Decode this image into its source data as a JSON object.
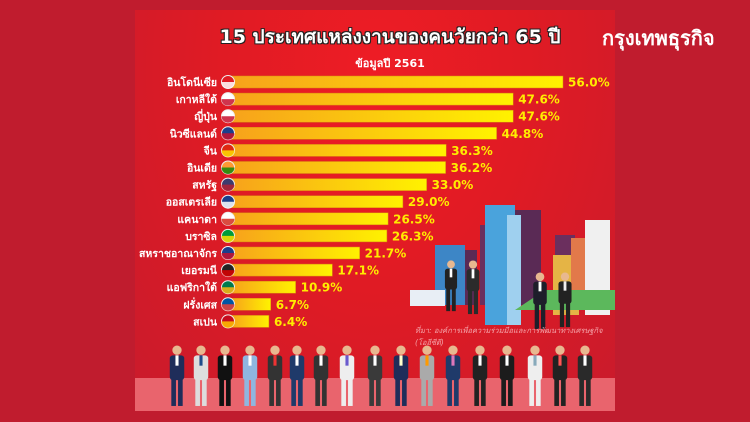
{
  "title": "15 ประเทศแหล่งงานของคนวัยกว่า 65 ปี",
  "subtitle": "ข้อมูลปี 2561",
  "logo": "กรุงเทพธุรกิจ",
  "source": "ที่มา: องค์การเพื่อความร่วมมือและการพัฒนาทางเศรษฐกิจ (โออีซีดี)",
  "colors": {
    "background": "#c01c2e",
    "poster": "#e31e24",
    "bar_start": "#f7a21b",
    "bar_end": "#fff200",
    "value_text": "#ffec00"
  },
  "chart_data": {
    "type": "bar",
    "orientation": "horizontal",
    "title": "15 ประเทศแหล่งงานของคนวัยกว่า 65 ปี",
    "subtitle": "ข้อมูลปี 2561",
    "categories": [
      "อินโดนีเซีย",
      "เกาหลีใต้",
      "ญี่ปุ่น",
      "นิวซีแลนด์",
      "จีน",
      "อินเดีย",
      "สหรัฐ",
      "ออสเตรเลีย",
      "แคนาดา",
      "บราซิล",
      "สหราชอาณาจักร",
      "เยอรมนี",
      "แอฟริกาใต้",
      "ฝรั่งเศส",
      "สเปน"
    ],
    "flags": [
      "indonesia-flag",
      "south-korea-flag",
      "japan-flag",
      "new-zealand-flag",
      "china-flag",
      "india-flag",
      "usa-flag",
      "australia-flag",
      "canada-flag",
      "brazil-flag",
      "uk-flag",
      "germany-flag",
      "south-africa-flag",
      "france-flag",
      "spain-flag"
    ],
    "values": [
      56.0,
      47.6,
      47.6,
      44.8,
      36.3,
      36.2,
      33.0,
      29.0,
      26.5,
      26.3,
      21.7,
      17.1,
      10.9,
      6.7,
      6.4
    ],
    "value_labels": [
      "56.0%",
      "47.6%",
      "47.6%",
      "44.8%",
      "36.3%",
      "36.2%",
      "33.0%",
      "29.0%",
      "26.5%",
      "26.3%",
      "21.7%",
      "17.1%",
      "10.9%",
      "6.7%",
      "6.4%"
    ],
    "unit": "%",
    "xlim": [
      0,
      56
    ],
    "grid": false,
    "legend": "none"
  }
}
